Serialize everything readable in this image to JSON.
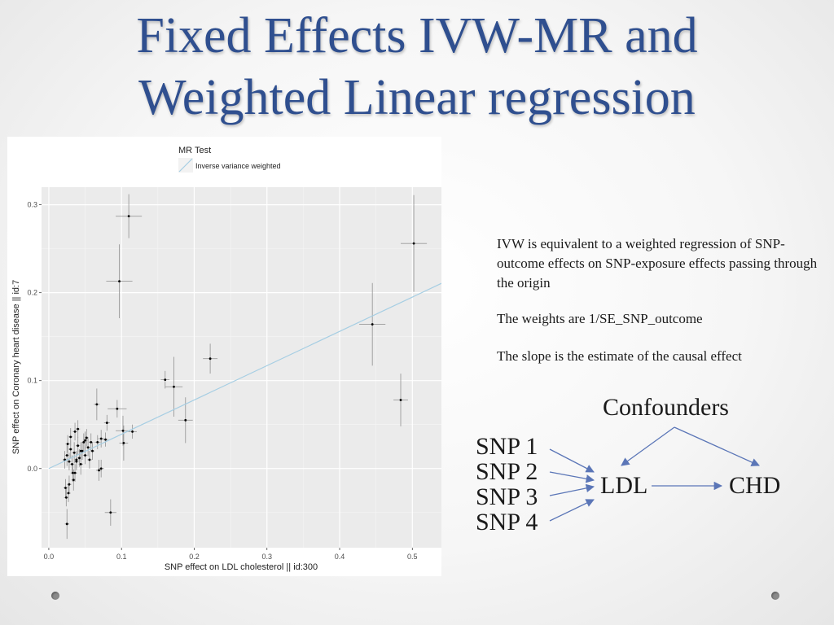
{
  "slide": {
    "title_line1": "Fixed Effects IVW-MR and",
    "title_line2": "Weighted Linear regression",
    "text1": "IVW is equivalent to a weighted regression of SNP-outcome effects on SNP-exposure effects passing through the origin",
    "text2": "The weights are 1/SE_SNP_outcome",
    "text3": "The slope is the estimate of the causal effect"
  },
  "diagram": {
    "confounders": "Confounders",
    "snps": [
      "SNP 1",
      "SNP 2",
      "SNP 3",
      "SNP 4"
    ],
    "exposure": "LDL",
    "outcome": "CHD",
    "arrow_color": "#5b76b7"
  },
  "chart_data": {
    "type": "scatter",
    "legend_title": "MR Test",
    "legend_entry": "Inverse variance weighted",
    "legend_position": "top",
    "xlabel": "SNP effect on LDL cholesterol || id:300",
    "ylabel": "SNP effect on Coronary heart disease || id:7",
    "xlim": [
      -0.01,
      0.54
    ],
    "ylim": [
      -0.09,
      0.32
    ],
    "xticks": [
      0.0,
      0.1,
      0.2,
      0.3,
      0.4,
      0.5
    ],
    "yticks": [
      0.0,
      0.1,
      0.2,
      0.3
    ],
    "grid": true,
    "panel_color": "#ebebeb",
    "line_color": "#a6cee3",
    "slope": 0.39,
    "points": [
      {
        "x": 0.11,
        "y": 0.287,
        "sx": 0.018,
        "sy": 0.025
      },
      {
        "x": 0.097,
        "y": 0.213,
        "sx": 0.018,
        "sy": 0.042
      },
      {
        "x": 0.502,
        "y": 0.256,
        "sx": 0.018,
        "sy": 0.055
      },
      {
        "x": 0.445,
        "y": 0.164,
        "sx": 0.018,
        "sy": 0.047
      },
      {
        "x": 0.484,
        "y": 0.078,
        "sx": 0.01,
        "sy": 0.03
      },
      {
        "x": 0.222,
        "y": 0.125,
        "sx": 0.01,
        "sy": 0.017
      },
      {
        "x": 0.16,
        "y": 0.101,
        "sx": 0.006,
        "sy": 0.01
      },
      {
        "x": 0.172,
        "y": 0.093,
        "sx": 0.012,
        "sy": 0.034
      },
      {
        "x": 0.188,
        "y": 0.055,
        "sx": 0.01,
        "sy": 0.026
      },
      {
        "x": 0.115,
        "y": 0.042,
        "sx": 0.006,
        "sy": 0.008
      },
      {
        "x": 0.094,
        "y": 0.068,
        "sx": 0.013,
        "sy": 0.01
      },
      {
        "x": 0.102,
        "y": 0.043,
        "sx": 0.01,
        "sy": 0.017
      },
      {
        "x": 0.103,
        "y": 0.029,
        "sx": 0.006,
        "sy": 0.02
      },
      {
        "x": 0.066,
        "y": 0.073,
        "sx": 0.004,
        "sy": 0.018
      },
      {
        "x": 0.08,
        "y": 0.052,
        "sx": 0.004,
        "sy": 0.009
      },
      {
        "x": 0.072,
        "y": 0.034,
        "sx": 0.004,
        "sy": 0.01
      },
      {
        "x": 0.078,
        "y": 0.033,
        "sx": 0.004,
        "sy": 0.008
      },
      {
        "x": 0.067,
        "y": 0.03,
        "sx": 0.004,
        "sy": 0.008
      },
      {
        "x": 0.085,
        "y": -0.05,
        "sx": 0.008,
        "sy": 0.015
      },
      {
        "x": 0.069,
        "y": -0.002,
        "sx": 0.004,
        "sy": 0.012
      },
      {
        "x": 0.072,
        "y": 0.0,
        "sx": 0.004,
        "sy": 0.01
      },
      {
        "x": 0.025,
        "y": -0.063,
        "sx": 0.003,
        "sy": 0.017
      },
      {
        "x": 0.024,
        "y": -0.033,
        "sx": 0.003,
        "sy": 0.01
      },
      {
        "x": 0.027,
        "y": -0.028,
        "sx": 0.003,
        "sy": 0.01
      },
      {
        "x": 0.023,
        "y": -0.022,
        "sx": 0.003,
        "sy": 0.01
      },
      {
        "x": 0.034,
        "y": -0.013,
        "sx": 0.003,
        "sy": 0.012
      },
      {
        "x": 0.022,
        "y": 0.01,
        "sx": 0.003,
        "sy": 0.01
      },
      {
        "x": 0.025,
        "y": 0.015,
        "sx": 0.003,
        "sy": 0.012
      },
      {
        "x": 0.028,
        "y": 0.008,
        "sx": 0.003,
        "sy": 0.01
      },
      {
        "x": 0.03,
        "y": 0.022,
        "sx": 0.003,
        "sy": 0.01
      },
      {
        "x": 0.032,
        "y": 0.005,
        "sx": 0.003,
        "sy": 0.01
      },
      {
        "x": 0.035,
        "y": 0.018,
        "sx": 0.003,
        "sy": 0.012
      },
      {
        "x": 0.038,
        "y": 0.01,
        "sx": 0.003,
        "sy": 0.01
      },
      {
        "x": 0.04,
        "y": 0.026,
        "sx": 0.003,
        "sy": 0.01
      },
      {
        "x": 0.042,
        "y": 0.012,
        "sx": 0.003,
        "sy": 0.01
      },
      {
        "x": 0.044,
        "y": 0.005,
        "sx": 0.003,
        "sy": 0.012
      },
      {
        "x": 0.046,
        "y": 0.02,
        "sx": 0.003,
        "sy": 0.01
      },
      {
        "x": 0.048,
        "y": 0.03,
        "sx": 0.003,
        "sy": 0.01
      },
      {
        "x": 0.05,
        "y": 0.015,
        "sx": 0.003,
        "sy": 0.01
      },
      {
        "x": 0.052,
        "y": 0.035,
        "sx": 0.003,
        "sy": 0.01
      },
      {
        "x": 0.054,
        "y": 0.024,
        "sx": 0.003,
        "sy": 0.01
      },
      {
        "x": 0.056,
        "y": 0.01,
        "sx": 0.003,
        "sy": 0.01
      },
      {
        "x": 0.058,
        "y": 0.03,
        "sx": 0.003,
        "sy": 0.01
      },
      {
        "x": 0.06,
        "y": 0.02,
        "sx": 0.003,
        "sy": 0.01
      },
      {
        "x": 0.036,
        "y": 0.042,
        "sx": 0.003,
        "sy": 0.01
      },
      {
        "x": 0.04,
        "y": 0.045,
        "sx": 0.003,
        "sy": 0.01
      },
      {
        "x": 0.03,
        "y": 0.036,
        "sx": 0.003,
        "sy": 0.01
      },
      {
        "x": 0.026,
        "y": 0.028,
        "sx": 0.003,
        "sy": 0.01
      },
      {
        "x": 0.033,
        "y": -0.005,
        "sx": 0.003,
        "sy": 0.01
      },
      {
        "x": 0.028,
        "y": -0.018,
        "sx": 0.003,
        "sy": 0.01
      },
      {
        "x": 0.05,
        "y": 0.032,
        "sx": 0.003,
        "sy": 0.01
      },
      {
        "x": 0.044,
        "y": 0.02,
        "sx": 0.003,
        "sy": 0.01
      },
      {
        "x": 0.038,
        "y": 0.008,
        "sx": 0.003,
        "sy": 0.01
      },
      {
        "x": 0.036,
        "y": -0.005,
        "sx": 0.003,
        "sy": 0.01
      }
    ]
  }
}
